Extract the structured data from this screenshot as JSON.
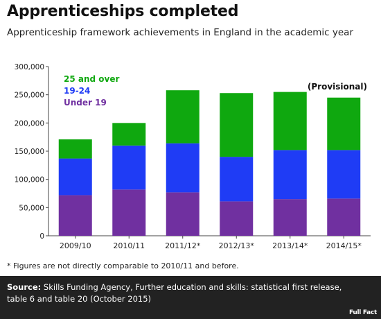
{
  "title": "Apprenticeships completed",
  "subtitle": "Apprenticeship framework achievements in England in the academic year",
  "footnote": "* Figures are not directly comparable to 2010/11 and before.",
  "source": {
    "label": "Source:",
    "text": "Skills Funding Agency, Further education and skills: statistical first release, table 6 and table 20 (October 2015)"
  },
  "logo": "Full Fact",
  "chart_data": {
    "type": "bar",
    "stacked": true,
    "categories": [
      "2009/10",
      "2010/11",
      "2011/12*",
      "2012/13*",
      "2013/14*",
      "2014/15*"
    ],
    "series": [
      {
        "name": "Under 19",
        "color": "#7030a0",
        "values": [
          72000,
          82000,
          77000,
          61000,
          65000,
          66000
        ]
      },
      {
        "name": "19-24",
        "color": "#1f3cf5",
        "values": [
          65000,
          78000,
          87000,
          79000,
          87000,
          86000
        ]
      },
      {
        "name": "25 and over",
        "color": "#0fa80f",
        "values": [
          34000,
          40000,
          94000,
          113000,
          103000,
          93000
        ]
      }
    ],
    "legend_order": [
      "25 and over",
      "19-24",
      "Under 19"
    ],
    "legend_position": "top-left",
    "annotation": "(Provisional)",
    "ylim": [
      0,
      300000
    ],
    "yticks": [
      0,
      50000,
      100000,
      150000,
      200000,
      250000,
      300000
    ],
    "ytick_labels": [
      "0",
      "50,000",
      "100,000",
      "150,000",
      "200,000",
      "250,000",
      "300,000"
    ],
    "grid": false
  }
}
